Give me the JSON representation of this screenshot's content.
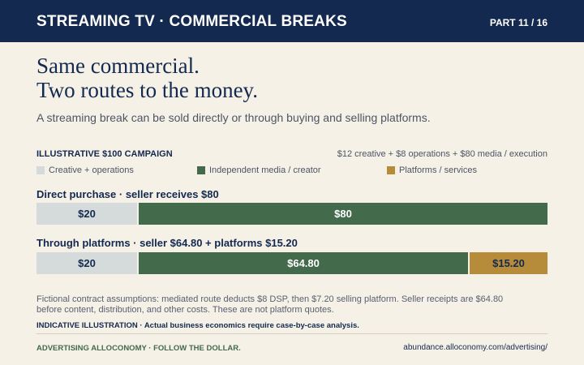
{
  "header": {
    "title": "STREAMING TV · COMMERCIAL BREAKS",
    "part": "PART 11 / 16"
  },
  "headline": {
    "line1": "Same commercial.",
    "line2": "Two routes to the money."
  },
  "subtitle": "A streaming break can be sold directly or through buying and selling platforms.",
  "section": {
    "label": "ILLUSTRATIVE $100 CAMPAIGN",
    "formula": "$12 creative + $8 operations + $80 media / execution"
  },
  "legend": [
    {
      "label": "Creative + operations",
      "color": "#d5dadb"
    },
    {
      "label": "Independent media / creator",
      "color": "#436a4b"
    },
    {
      "label": "Platforms / services",
      "color": "#b68b3a"
    }
  ],
  "chart_data": {
    "type": "bar",
    "title": "ILLUSTRATIVE $100 CAMPAIGN",
    "total": 100,
    "series_names": [
      "Creative + operations",
      "Independent media / creator",
      "Platforms / services"
    ],
    "rows": [
      {
        "label": "Direct purchase · seller receives $80",
        "segments": [
          {
            "series": "Creative + operations",
            "value": 20,
            "label": "$20"
          },
          {
            "series": "Independent media / creator",
            "value": 80,
            "label": "$80"
          }
        ]
      },
      {
        "label": "Through platforms · seller $64.80 + platforms $15.20",
        "segments": [
          {
            "series": "Creative + operations",
            "value": 20,
            "label": "$20"
          },
          {
            "series": "Independent media / creator",
            "value": 64.8,
            "label": "$64.80"
          },
          {
            "series": "Platforms / services",
            "value": 15.2,
            "label": "$15.20"
          }
        ]
      }
    ]
  },
  "notes": "Fictional contract assumptions: mediated route deducts $8 DSP, then $7.20 selling platform. Seller receipts are $64.80 before content, distribution, and other costs. These are not platform quotes.",
  "disclaimer": "INDICATIVE ILLUSTRATION · Actual business economics require case-by-case analysis.",
  "footer": {
    "left": "ADVERTISING ALLOCONOMY · FOLLOW THE DOLLAR.",
    "right": "abundance.alloconomy.com/advertising/"
  }
}
